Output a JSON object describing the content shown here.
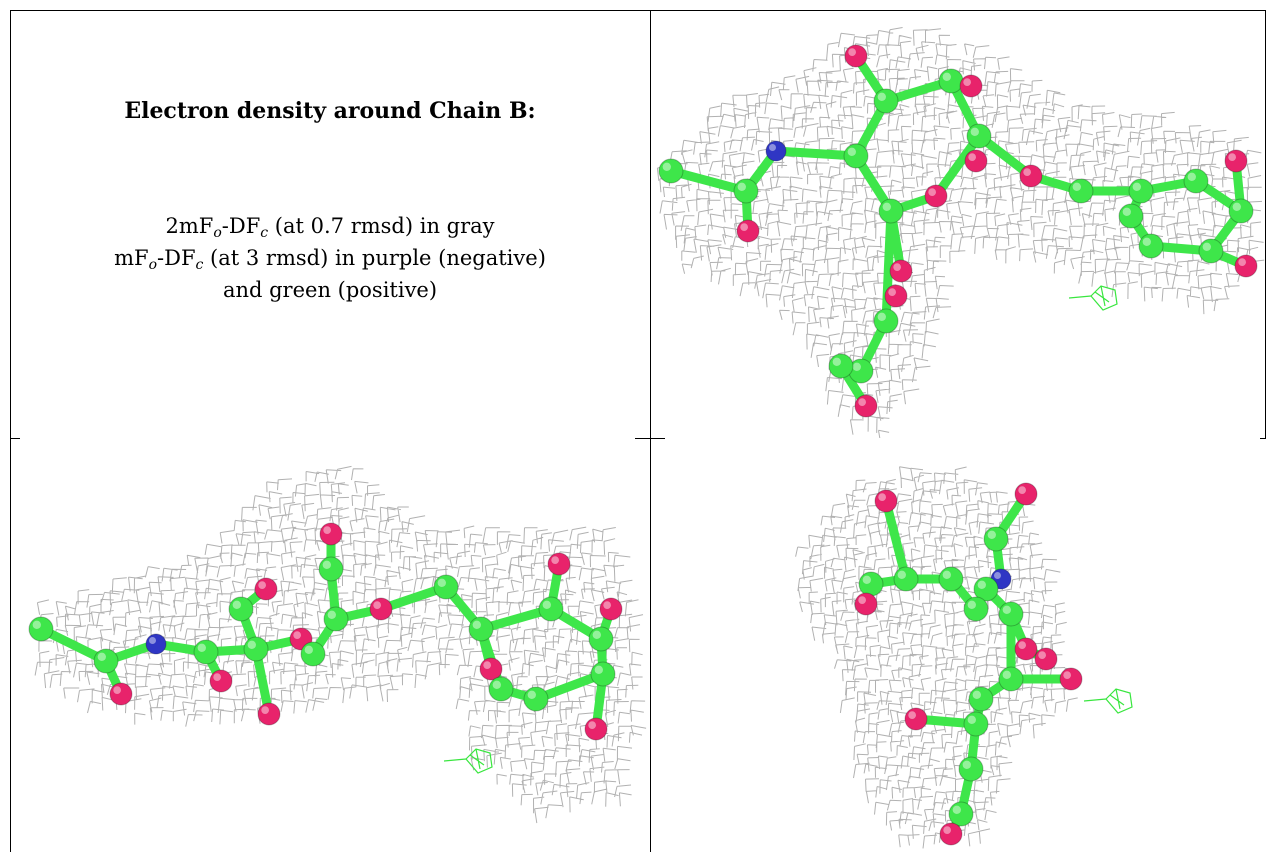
{
  "caption": {
    "title": "Electron density around Chain B:",
    "line1": {
      "prefix": "2mF",
      "sub1": "o",
      "mid": "-DF",
      "sub2": "c",
      "suffix": " (at 0.7 rmsd) in gray"
    },
    "line2": {
      "prefix": "mF",
      "sub1": "o",
      "mid": "-DF",
      "sub2": "c",
      "suffix": " (at 3 rmsd) in purple (negative)"
    },
    "line3": "and green (positive)"
  },
  "colors": {
    "mesh": "#a8a8a8",
    "carbon": "#3ee64a",
    "oxygen": "#e8236b",
    "nitrogen": "#2f36c4",
    "diff_positive": "#39e63f"
  },
  "panels": [
    {
      "name": "view-top-right",
      "icon": "electron-density-mesh-view-1"
    },
    {
      "name": "view-bottom-left",
      "icon": "electron-density-mesh-view-2"
    },
    {
      "name": "view-bottom-right",
      "icon": "electron-density-mesh-view-3"
    }
  ]
}
